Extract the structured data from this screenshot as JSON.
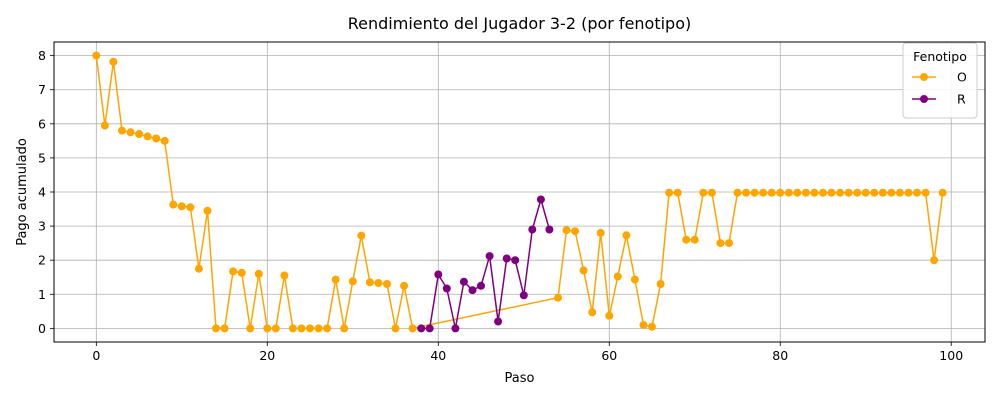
{
  "chart_data": {
    "type": "line",
    "title": "Rendimiento del Jugador 3-2 (por fenotipo)",
    "xlabel": "Paso",
    "ylabel": "Pago acumulado",
    "xlim": [
      -4.95,
      103.95
    ],
    "ylim": [
      -0.4,
      8.4
    ],
    "xticks": [
      0,
      20,
      40,
      60,
      80,
      100
    ],
    "yticks": [
      0,
      1,
      2,
      3,
      4,
      5,
      6,
      7,
      8
    ],
    "grid": true,
    "legend": {
      "title": "Fenotipo",
      "placement": "top-right"
    },
    "series": [
      {
        "name": "O",
        "color": "#FFA500",
        "x": [
          0,
          1,
          2,
          3,
          4,
          5,
          6,
          7,
          8,
          9,
          10,
          11,
          12,
          13,
          14,
          15,
          16,
          17,
          18,
          19,
          20,
          21,
          22,
          23,
          24,
          25,
          26,
          27,
          28,
          29,
          30,
          31,
          32,
          33,
          34,
          35,
          36,
          37,
          54,
          55,
          56,
          57,
          58,
          59,
          60,
          61,
          62,
          63,
          64,
          65,
          66,
          67,
          68,
          69,
          70,
          71,
          72,
          73,
          74,
          75,
          76,
          77,
          78,
          79,
          80,
          81,
          82,
          83,
          84,
          85,
          86,
          87,
          88,
          89,
          90,
          91,
          92,
          93,
          94,
          95,
          96,
          97,
          98,
          99
        ],
        "y": [
          8.0,
          5.95,
          7.82,
          5.8,
          5.75,
          5.7,
          5.63,
          5.57,
          5.5,
          3.63,
          3.58,
          3.55,
          1.75,
          3.45,
          0.0,
          0.0,
          1.67,
          1.63,
          0.0,
          1.6,
          0.0,
          0.0,
          1.55,
          0.0,
          0.0,
          0.0,
          0.0,
          0.0,
          1.43,
          0.0,
          1.38,
          2.72,
          1.35,
          1.33,
          1.3,
          0.0,
          1.25,
          0.0,
          0.9,
          2.88,
          2.85,
          1.7,
          0.47,
          2.8,
          0.37,
          1.52,
          2.73,
          1.43,
          0.1,
          0.05,
          1.3,
          3.98,
          3.98,
          2.6,
          2.6,
          3.98,
          3.98,
          2.5,
          2.5,
          3.98,
          3.98,
          3.98,
          3.98,
          3.98,
          3.98,
          3.98,
          3.98,
          3.98,
          3.98,
          3.98,
          3.98,
          3.98,
          3.98,
          3.98,
          3.98,
          3.98,
          3.98,
          3.98,
          3.98,
          3.98,
          3.98,
          3.98,
          2.0,
          3.98
        ]
      },
      {
        "name": "R",
        "color": "#800080",
        "x": [
          38,
          39,
          40,
          41,
          42,
          43,
          44,
          45,
          46,
          47,
          48,
          49,
          50,
          51,
          52,
          53
        ],
        "y": [
          0.0,
          0.0,
          1.58,
          1.17,
          0.0,
          1.37,
          1.12,
          1.25,
          2.12,
          0.2,
          2.05,
          2.0,
          0.97,
          2.9,
          3.78,
          2.9
        ]
      }
    ]
  }
}
